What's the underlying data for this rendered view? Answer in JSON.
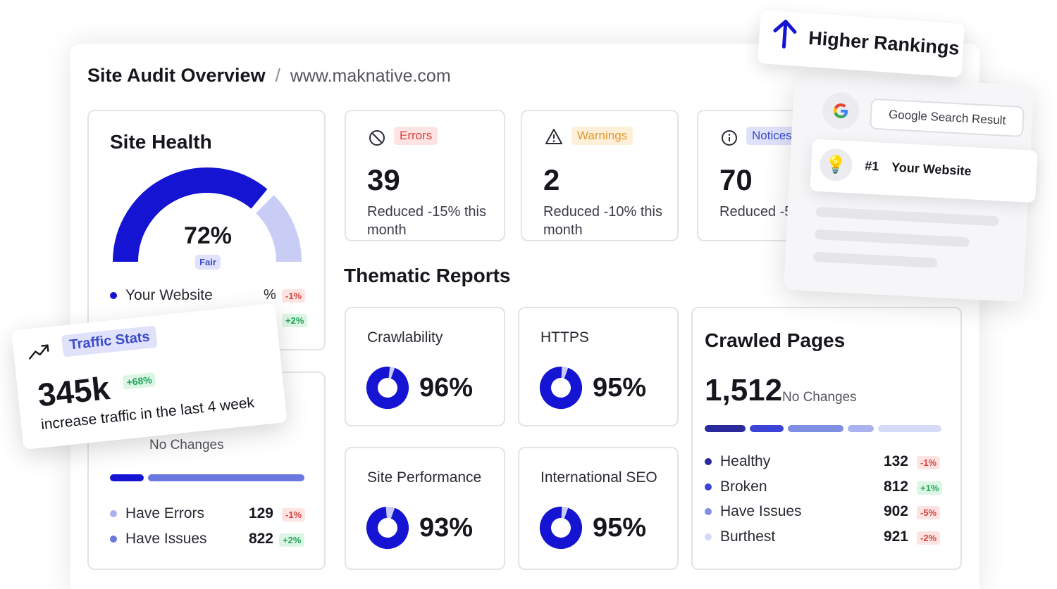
{
  "header": {
    "title": "Site Audit Overview",
    "separator": "/",
    "site": "www.maknative.com"
  },
  "site_health": {
    "title": "Site Health",
    "percent_label": "72%",
    "percent": 0.72,
    "status": "Fair",
    "legend": [
      {
        "label": "Your Website",
        "value_fragment": "%",
        "change": "-1%"
      },
      {
        "change": "+2%"
      }
    ]
  },
  "issues": {
    "errors": {
      "badge": "Errors",
      "value": "39",
      "desc": "Reduced -15% this month"
    },
    "warnings": {
      "badge": "Warnings",
      "value": "2",
      "desc": "Reduced -10% this month"
    },
    "notices": {
      "badge": "Notices",
      "value": "70",
      "desc": "Reduced -5%"
    }
  },
  "thematic": {
    "title": "Thematic Reports",
    "items": [
      {
        "label": "Crawlability",
        "value_label": "96%",
        "value": 0.96
      },
      {
        "label": "HTTPS",
        "value_label": "95%",
        "value": 0.95
      },
      {
        "label": "Site Performance",
        "value_label": "93%",
        "value": 0.93
      },
      {
        "label": "International SEO",
        "value_label": "95%",
        "value": 0.95
      }
    ]
  },
  "crawled": {
    "title": "Crawled Pages",
    "total": "1,512",
    "status": "No Changes",
    "rows": [
      {
        "label": "Healthy",
        "value": "132",
        "change": "-1%",
        "trend": "down",
        "color": "#2a2a9c"
      },
      {
        "label": "Broken",
        "value": "812",
        "change": "+1%",
        "trend": "up",
        "color": "#3b44d6"
      },
      {
        "label": "Have Issues",
        "value": "902",
        "change": "-5%",
        "trend": "down",
        "color": "#7f8fe3"
      },
      {
        "label": "Burthest",
        "value": "921",
        "change": "-2%",
        "trend": "down",
        "color": "#d5dbf6"
      }
    ]
  },
  "errors_card": {
    "status_fragment": "No Changes",
    "rows": [
      {
        "label": "Have Errors",
        "value": "129",
        "change": "-1%",
        "trend": "down",
        "color": "#a9b2ee"
      },
      {
        "label": "Have Issues",
        "value": "822",
        "change": "+2%",
        "trend": "up",
        "color": "#6a78e0"
      }
    ]
  },
  "traffic": {
    "badge": "Traffic Stats",
    "value": "345k",
    "change": "+68%",
    "desc": "increase traffic in the last 4 week"
  },
  "rankings": {
    "label": "Higher Rankings"
  },
  "search": {
    "label": "Google Search Result",
    "rank": "#1",
    "site": "Your Website"
  },
  "colors": {
    "accent": "#1414d2",
    "accent_light": "#c9cdf5",
    "error": "#d6453e",
    "warning": "#e29a2f",
    "notice": "#3c4bc8",
    "positive": "#23a55a"
  }
}
